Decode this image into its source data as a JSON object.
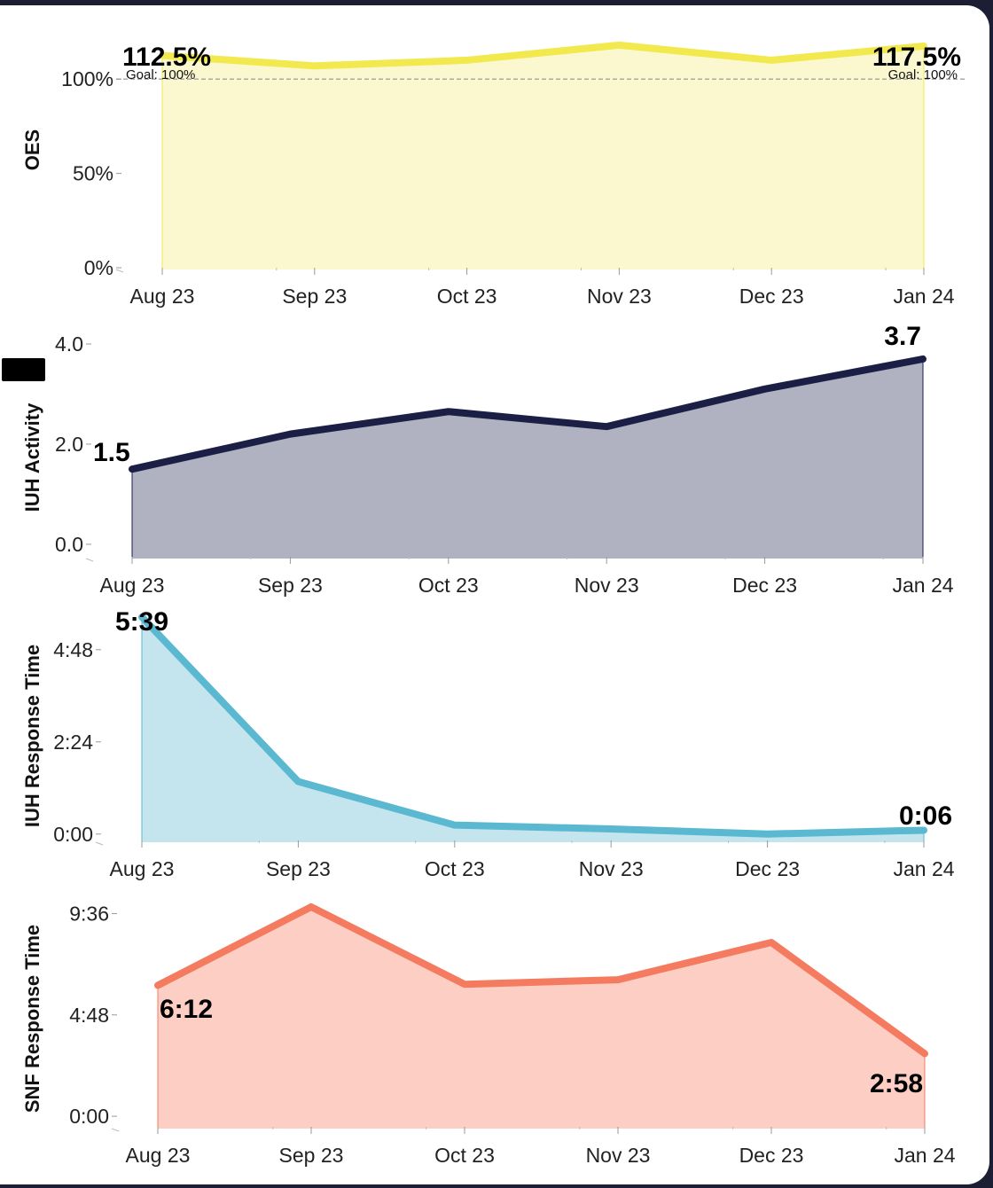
{
  "chart_data": [
    {
      "type": "area",
      "ylabel": "OES",
      "categories": [
        "Aug 23",
        "Sep 23",
        "Oct 23",
        "Nov 23",
        "Dec 23",
        "Jan 24"
      ],
      "values": [
        112.5,
        107,
        110,
        118,
        110,
        117.5
      ],
      "yticks": [
        "0%",
        "50%",
        "100%"
      ],
      "ytick_values": [
        0,
        50,
        100
      ],
      "ylim": [
        0,
        125
      ],
      "goal": 100,
      "goal_label": "Goal: 100%",
      "first_label": "112.5%",
      "last_label": "117.5%",
      "color": "#f2e94e",
      "fill": "#fbf8cf"
    },
    {
      "type": "area",
      "ylabel": "IUH Activity",
      "categories": [
        "Aug 23",
        "Sep 23",
        "Oct 23",
        "Nov 23",
        "Dec 23",
        "Jan 24"
      ],
      "values": [
        1.5,
        2.2,
        2.65,
        2.35,
        3.1,
        3.7
      ],
      "yticks": [
        "0.0",
        "2.0",
        "4.0"
      ],
      "ytick_values": [
        0,
        2,
        4
      ],
      "ylim": [
        -0.25,
        4.0
      ],
      "first_label": "1.5",
      "last_label": "3.7",
      "color": "#1c1f45",
      "fill": "#b0b2c1"
    },
    {
      "type": "area",
      "ylabel": "IUH Response Time",
      "categories": [
        "Aug 23",
        "Sep 23",
        "Oct 23",
        "Nov 23",
        "Dec 23",
        "Jan 24"
      ],
      "values_seconds": [
        339,
        82,
        14,
        8,
        0,
        6
      ],
      "yticks": [
        "0:00",
        "2:24",
        "4:48"
      ],
      "ytick_values": [
        0,
        144,
        288
      ],
      "ylim": [
        -10,
        339
      ],
      "first_label": "5:39",
      "last_label": "0:06",
      "color": "#5ab8d0",
      "fill": "#c4e5ed"
    },
    {
      "type": "area",
      "ylabel": "SNF Response Time",
      "categories": [
        "Aug 23",
        "Sep 23",
        "Oct 23",
        "Nov 23",
        "Dec 23",
        "Jan 24"
      ],
      "values_seconds": [
        372,
        595,
        375,
        388,
        494,
        178
      ],
      "yticks": [
        "0:00",
        "4:48",
        "9:36"
      ],
      "ytick_values": [
        0,
        288,
        576
      ],
      "ylim": [
        -30,
        625
      ],
      "first_label": "6:12",
      "last_label": "2:58",
      "color": "#f47b60",
      "fill": "#fdcfc4"
    }
  ]
}
